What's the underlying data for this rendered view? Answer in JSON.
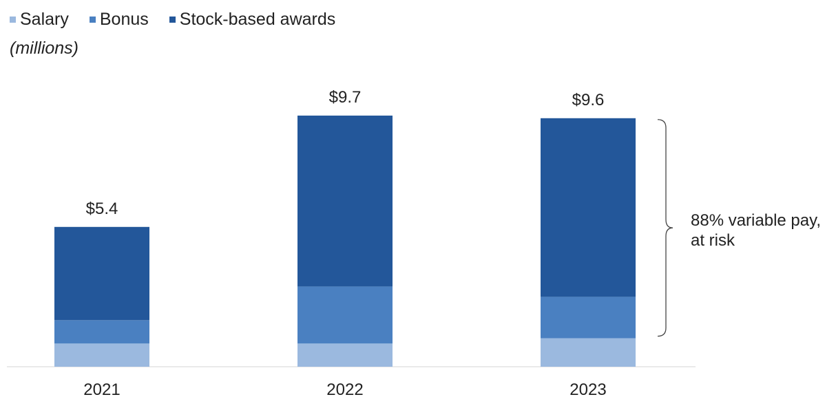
{
  "chart_data": {
    "type": "bar",
    "stacked": true,
    "categories": [
      "2021",
      "2022",
      "2023"
    ],
    "series": [
      {
        "name": "Salary",
        "color": "#9bb9df",
        "values": [
          0.9,
          0.9,
          1.1
        ]
      },
      {
        "name": "Bonus",
        "color": "#4a80c1",
        "values": [
          0.9,
          2.2,
          1.6
        ]
      },
      {
        "name": "Stock-based awards",
        "color": "#23579a",
        "values": [
          3.6,
          6.6,
          6.9
        ]
      }
    ],
    "totals": [
      "$5.4",
      "$9.7",
      "$9.6"
    ],
    "unit_label": "(millions)",
    "ylim": [
      0,
      9.7
    ],
    "legend_position": "top-left",
    "grid": false,
    "annotation": {
      "lines": [
        "88% variable pay,",
        "at risk"
      ],
      "applies_to": "2023"
    }
  }
}
